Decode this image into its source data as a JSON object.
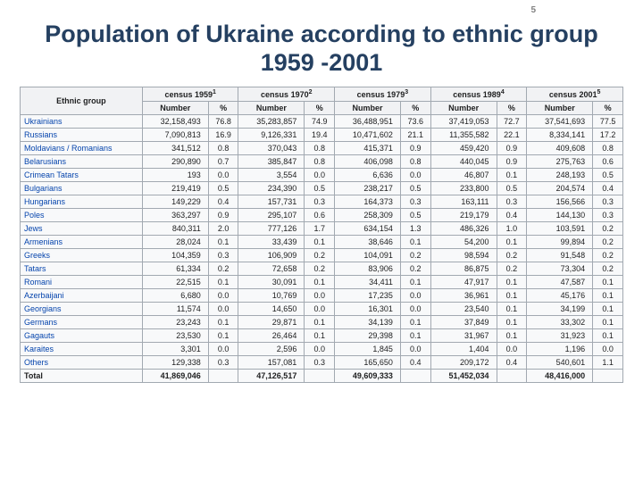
{
  "page_number": "5",
  "title": "Population of Ukraine according to ethnic group 1959 -2001",
  "header": {
    "group_label": "Ethnic group",
    "censuses": [
      {
        "label": "census 1959",
        "sup": "1"
      },
      {
        "label": "census 1970",
        "sup": "2"
      },
      {
        "label": "census 1979",
        "sup": "3"
      },
      {
        "label": "census 1989",
        "sup": "4"
      },
      {
        "label": "census 2001",
        "sup": "5"
      }
    ],
    "number_label": "Number",
    "percent_label": "%"
  },
  "rows": [
    {
      "group": "Ukrainians",
      "vals": [
        "32,158,493",
        "76.8",
        "35,283,857",
        "74.9",
        "36,488,951",
        "73.6",
        "37,419,053",
        "72.7",
        "37,541,693",
        "77.5"
      ]
    },
    {
      "group": "Russians",
      "vals": [
        "7,090,813",
        "16.9",
        "9,126,331",
        "19.4",
        "10,471,602",
        "21.1",
        "11,355,582",
        "22.1",
        "8,334,141",
        "17.2"
      ]
    },
    {
      "group": "Moldavians / Romanians",
      "vals": [
        "341,512",
        "0.8",
        "370,043",
        "0.8",
        "415,371",
        "0.9",
        "459,420",
        "0.9",
        "409,608",
        "0.8"
      ]
    },
    {
      "group": "Belarusians",
      "vals": [
        "290,890",
        "0.7",
        "385,847",
        "0.8",
        "406,098",
        "0.8",
        "440,045",
        "0.9",
        "275,763",
        "0.6"
      ]
    },
    {
      "group": "Crimean Tatars",
      "vals": [
        "193",
        "0.0",
        "3,554",
        "0.0",
        "6,636",
        "0.0",
        "46,807",
        "0.1",
        "248,193",
        "0.5"
      ]
    },
    {
      "group": "Bulgarians",
      "vals": [
        "219,419",
        "0.5",
        "234,390",
        "0.5",
        "238,217",
        "0.5",
        "233,800",
        "0.5",
        "204,574",
        "0.4"
      ]
    },
    {
      "group": "Hungarians",
      "vals": [
        "149,229",
        "0.4",
        "157,731",
        "0.3",
        "164,373",
        "0.3",
        "163,111",
        "0.3",
        "156,566",
        "0.3"
      ]
    },
    {
      "group": "Poles",
      "vals": [
        "363,297",
        "0.9",
        "295,107",
        "0.6",
        "258,309",
        "0.5",
        "219,179",
        "0.4",
        "144,130",
        "0.3"
      ]
    },
    {
      "group": "Jews",
      "vals": [
        "840,311",
        "2.0",
        "777,126",
        "1.7",
        "634,154",
        "1.3",
        "486,326",
        "1.0",
        "103,591",
        "0.2"
      ]
    },
    {
      "group": "Armenians",
      "vals": [
        "28,024",
        "0.1",
        "33,439",
        "0.1",
        "38,646",
        "0.1",
        "54,200",
        "0.1",
        "99,894",
        "0.2"
      ]
    },
    {
      "group": "Greeks",
      "vals": [
        "104,359",
        "0.3",
        "106,909",
        "0.2",
        "104,091",
        "0.2",
        "98,594",
        "0.2",
        "91,548",
        "0.2"
      ]
    },
    {
      "group": "Tatars",
      "vals": [
        "61,334",
        "0.2",
        "72,658",
        "0.2",
        "83,906",
        "0.2",
        "86,875",
        "0.2",
        "73,304",
        "0.2"
      ]
    },
    {
      "group": "Romani",
      "vals": [
        "22,515",
        "0.1",
        "30,091",
        "0.1",
        "34,411",
        "0.1",
        "47,917",
        "0.1",
        "47,587",
        "0.1"
      ]
    },
    {
      "group": "Azerbaijani",
      "vals": [
        "6,680",
        "0.0",
        "10,769",
        "0.0",
        "17,235",
        "0.0",
        "36,961",
        "0.1",
        "45,176",
        "0.1"
      ]
    },
    {
      "group": "Georgians",
      "vals": [
        "11,574",
        "0.0",
        "14,650",
        "0.0",
        "16,301",
        "0.0",
        "23,540",
        "0.1",
        "34,199",
        "0.1"
      ]
    },
    {
      "group": "Germans",
      "vals": [
        "23,243",
        "0.1",
        "29,871",
        "0.1",
        "34,139",
        "0.1",
        "37,849",
        "0.1",
        "33,302",
        "0.1"
      ]
    },
    {
      "group": "Gagauts",
      "vals": [
        "23,530",
        "0.1",
        "26,464",
        "0.1",
        "29,398",
        "0.1",
        "31,967",
        "0.1",
        "31,923",
        "0.1"
      ]
    },
    {
      "group": "Karaites",
      "vals": [
        "3,301",
        "0.0",
        "2,596",
        "0.0",
        "1,845",
        "0.0",
        "1,404",
        "0.0",
        "1,196",
        "0.0"
      ]
    },
    {
      "group": "Others",
      "vals": [
        "129,338",
        "0.3",
        "157,081",
        "0.3",
        "165,650",
        "0.4",
        "209,172",
        "0.4",
        "540,601",
        "1.1"
      ]
    }
  ],
  "total": {
    "label": "Total",
    "vals": [
      "41,869,046",
      "",
      "47,126,517",
      "",
      "49,609,333",
      "",
      "51,452,034",
      "",
      "48,416,000",
      ""
    ]
  },
  "colors": {
    "title": "#254061",
    "link": "#0645ad",
    "border": "#a2a9b1",
    "header_bg": "#f1f2f4",
    "body_bg": "#f8f9fa"
  }
}
